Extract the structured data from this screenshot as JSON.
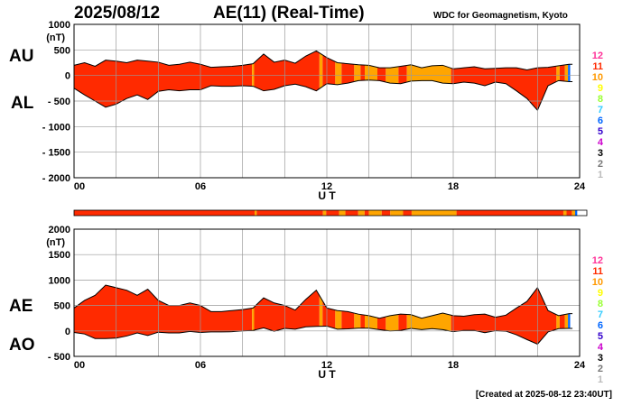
{
  "header": {
    "date": "2025/08/12",
    "title": "AE(11) (Real-Time)",
    "source": "WDC for Geomagnetism, Kyoto"
  },
  "labels": {
    "au": "AU",
    "al": "AL",
    "ae": "AE",
    "ao": "AO"
  },
  "footer": "[Created at 2025-08-12 23:40UT]",
  "colors": {
    "11": "#ff2a00",
    "10": "#ffa500",
    "9": "#ffff00",
    "8": "#99ff33",
    "7": "#33ccff",
    "6": "#0066ff",
    "5": "#3300cc",
    "4": "#cc00cc",
    "3": "#000000",
    "2": "#777777",
    "1": "#bbbbbb",
    "12": "#ff0099",
    "grid": "#9a9a9a"
  },
  "legend": [
    {
      "label": "12",
      "color": "#ff3399"
    },
    {
      "label": "11",
      "color": "#ff2a00"
    },
    {
      "label": "10",
      "color": "#ff9900"
    },
    {
      "label": "9",
      "color": "#ffff00"
    },
    {
      "label": "8",
      "color": "#99ff33"
    },
    {
      "label": "7",
      "color": "#33ccff"
    },
    {
      "label": "6",
      "color": "#0066ff"
    },
    {
      "label": "5",
      "color": "#3300cc"
    },
    {
      "label": "4",
      "color": "#cc00cc"
    },
    {
      "label": "3",
      "color": "#000000"
    },
    {
      "label": "2",
      "color": "#777777"
    },
    {
      "label": "1",
      "color": "#bbbbbb"
    }
  ],
  "chart_data": [
    {
      "type": "area",
      "name": "AU/AL",
      "xlabel": "U T",
      "ylabel": "(nT)",
      "xlim": [
        0,
        24
      ],
      "ylim": [
        -2000,
        1000
      ],
      "yticks": [
        1000,
        500,
        0,
        -500,
        -1000,
        -1500,
        -2000
      ],
      "ytick_labels": [
        "1000",
        "500",
        "0",
        "- 500",
        "- 1000",
        "- 1500",
        "- 2000"
      ],
      "xticks": [
        0,
        6,
        12,
        18,
        24
      ],
      "xtick_labels": [
        "00",
        "06",
        "12",
        "18",
        "24"
      ],
      "ylabel_value": 750,
      "series": [
        {
          "name": "AU",
          "x": [
            0,
            0.5,
            1,
            1.5,
            2,
            2.5,
            3,
            3.5,
            4,
            4.5,
            5,
            5.5,
            6,
            6.5,
            7,
            7.5,
            8,
            8.5,
            9,
            9.5,
            10,
            10.5,
            11,
            11.5,
            12,
            12.5,
            13,
            13.5,
            14,
            14.5,
            15,
            15.5,
            16,
            16.5,
            17,
            17.5,
            18,
            18.5,
            19,
            19.5,
            20,
            20.5,
            21,
            21.5,
            22,
            22.5,
            23,
            23.5
          ],
          "values": [
            200,
            250,
            180,
            300,
            280,
            250,
            300,
            280,
            260,
            200,
            220,
            260,
            220,
            160,
            170,
            180,
            200,
            230,
            420,
            260,
            300,
            240,
            380,
            480,
            350,
            250,
            230,
            210,
            200,
            150,
            150,
            180,
            210,
            150,
            190,
            200,
            130,
            150,
            170,
            130,
            140,
            150,
            150,
            110,
            150,
            160,
            190,
            220
          ]
        },
        {
          "name": "AL",
          "x": [
            0,
            0.5,
            1,
            1.5,
            2,
            2.5,
            3,
            3.5,
            4,
            4.5,
            5,
            5.5,
            6,
            6.5,
            7,
            7.5,
            8,
            8.5,
            9,
            9.5,
            10,
            10.5,
            11,
            11.5,
            12,
            12.5,
            13,
            13.5,
            14,
            14.5,
            15,
            15.5,
            16,
            16.5,
            17,
            17.5,
            18,
            18.5,
            19,
            19.5,
            20,
            20.5,
            21,
            21.5,
            22,
            22.5,
            23,
            23.5
          ],
          "values": [
            -250,
            -380,
            -500,
            -620,
            -560,
            -450,
            -380,
            -470,
            -310,
            -280,
            -300,
            -280,
            -280,
            -200,
            -210,
            -210,
            -200,
            -210,
            -300,
            -270,
            -200,
            -170,
            -220,
            -300,
            -160,
            -180,
            -150,
            -100,
            -90,
            -100,
            -150,
            -160,
            -110,
            -100,
            -100,
            -150,
            -160,
            -130,
            -150,
            -200,
            -130,
            -160,
            -300,
            -450,
            -680,
            -200,
            -100,
            -120
          ]
        }
      ]
    },
    {
      "type": "area",
      "name": "AE/AO",
      "xlabel": "U T",
      "ylabel": "(nT)",
      "xlim": [
        0,
        24
      ],
      "ylim": [
        -500,
        2000
      ],
      "yticks": [
        2000,
        1500,
        1000,
        500,
        0,
        -500
      ],
      "ytick_labels": [
        "2000",
        "1500",
        "1000",
        "500",
        "0",
        "- 500"
      ],
      "xticks": [
        0,
        6,
        12,
        18,
        24
      ],
      "xtick_labels": [
        "00",
        "06",
        "12",
        "18",
        "24"
      ],
      "ylabel_value": 1750,
      "series": [
        {
          "name": "AE",
          "x": [
            0,
            0.5,
            1,
            1.5,
            2,
            2.5,
            3,
            3.5,
            4,
            4.5,
            5,
            5.5,
            6,
            6.5,
            7,
            7.5,
            8,
            8.5,
            9,
            9.5,
            10,
            10.5,
            11,
            11.5,
            12,
            12.5,
            13,
            13.5,
            14,
            14.5,
            15,
            15.5,
            16,
            16.5,
            17,
            17.5,
            18,
            18.5,
            19,
            19.5,
            20,
            20.5,
            21,
            21.5,
            22,
            22.5,
            23,
            23.5
          ],
          "values": [
            450,
            600,
            700,
            900,
            850,
            800,
            700,
            820,
            600,
            500,
            500,
            550,
            500,
            380,
            380,
            400,
            420,
            450,
            650,
            550,
            500,
            410,
            620,
            800,
            450,
            400,
            380,
            330,
            300,
            250,
            300,
            330,
            320,
            250,
            300,
            350,
            300,
            290,
            320,
            330,
            270,
            310,
            450,
            580,
            850,
            400,
            300,
            340
          ]
        },
        {
          "name": "AO",
          "x": [
            0,
            0.5,
            1,
            1.5,
            2,
            2.5,
            3,
            3.5,
            4,
            4.5,
            5,
            5.5,
            6,
            6.5,
            7,
            7.5,
            8,
            8.5,
            9,
            9.5,
            10,
            10.5,
            11,
            11.5,
            12,
            12.5,
            13,
            13.5,
            14,
            14.5,
            15,
            15.5,
            16,
            16.5,
            17,
            17.5,
            18,
            18.5,
            19,
            19.5,
            20,
            20.5,
            21,
            21.5,
            22,
            22.5,
            23,
            23.5
          ],
          "values": [
            -30,
            -60,
            -150,
            -150,
            -140,
            -100,
            -40,
            -90,
            -25,
            -40,
            -40,
            -10,
            -30,
            -20,
            -20,
            -15,
            0,
            10,
            60,
            -5,
            50,
            35,
            80,
            90,
            95,
            35,
            40,
            55,
            55,
            25,
            0,
            10,
            50,
            25,
            45,
            25,
            -15,
            10,
            10,
            -35,
            5,
            -5,
            -75,
            -170,
            -260,
            -20,
            45,
            50
          ]
        }
      ]
    }
  ],
  "coverage_bar": {
    "segments": [
      {
        "from": 0,
        "to": 8.45,
        "color_key": "11"
      },
      {
        "from": 8.45,
        "to": 8.55,
        "color_key": "10"
      },
      {
        "from": 8.55,
        "to": 11.65,
        "color_key": "11"
      },
      {
        "from": 11.65,
        "to": 11.8,
        "color_key": "10"
      },
      {
        "from": 11.8,
        "to": 12.4,
        "color_key": "11"
      },
      {
        "from": 12.4,
        "to": 12.7,
        "color_key": "10"
      },
      {
        "from": 12.7,
        "to": 13.3,
        "color_key": "11"
      },
      {
        "from": 13.3,
        "to": 13.6,
        "color_key": "10"
      },
      {
        "from": 13.6,
        "to": 13.8,
        "color_key": "11"
      },
      {
        "from": 13.8,
        "to": 14.4,
        "color_key": "10"
      },
      {
        "from": 14.4,
        "to": 14.8,
        "color_key": "11"
      },
      {
        "from": 14.8,
        "to": 15.4,
        "color_key": "10"
      },
      {
        "from": 15.4,
        "to": 15.8,
        "color_key": "11"
      },
      {
        "from": 15.8,
        "to": 17.9,
        "color_key": "10"
      },
      {
        "from": 17.9,
        "to": 22.9,
        "color_key": "11"
      },
      {
        "from": 22.9,
        "to": 23.05,
        "color_key": "10"
      },
      {
        "from": 23.05,
        "to": 23.3,
        "color_key": "11"
      },
      {
        "from": 23.3,
        "to": 23.45,
        "color_key": "10"
      },
      {
        "from": 23.45,
        "to": 23.55,
        "color_key": "6"
      }
    ]
  }
}
